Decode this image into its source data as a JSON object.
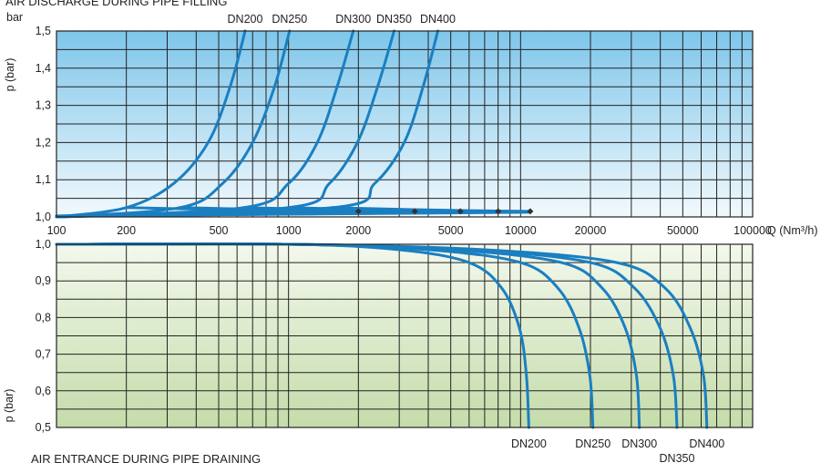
{
  "titles": {
    "top": "AIR DISCHARGE DURING PIPE FILLING",
    "bottom": "AIR ENTRANCE DURING PIPE DRAINING"
  },
  "chart_data": [
    {
      "type": "line",
      "title": "AIR DISCHARGE DURING PIPE FILLING",
      "xlabel": "Q (Nm³/h)",
      "ylabel": "p (bar)",
      "unit_label": "bar",
      "xscale": "log",
      "xlim": [
        100,
        100000
      ],
      "ylim": [
        1.0,
        1.5
      ],
      "x_tick_labels": [
        "100",
        "200",
        "500",
        "1000",
        "2000",
        "5000",
        "10000",
        "20000",
        "50000",
        "100000"
      ],
      "x_ticks": [
        100,
        200,
        500,
        1000,
        2000,
        5000,
        10000,
        20000,
        50000,
        100000
      ],
      "y_tick_labels": [
        "1,0",
        "1,1",
        "1,2",
        "1,3",
        "1,4",
        "1,5"
      ],
      "y_ticks": [
        1.0,
        1.1,
        1.2,
        1.3,
        1.4,
        1.5
      ],
      "grid": true,
      "colors": {
        "curve": "#1a7fc1",
        "bg_top": "#7ec6ea",
        "bg_bottom": "#f2f9fd",
        "marker": "#333333"
      },
      "series": [
        {
          "name": "DN200",
          "x": [
            100,
            200,
            320,
            450,
            560,
            650
          ],
          "y": [
            1.0,
            1.025,
            1.09,
            1.2,
            1.35,
            1.5
          ],
          "marker": [
            2000,
            1.015
          ]
        },
        {
          "name": "DN250",
          "x": [
            100,
            340,
            520,
            700,
            870,
            1010
          ],
          "y": [
            1.0,
            1.025,
            1.09,
            1.2,
            1.35,
            1.5
          ],
          "marker": [
            3500,
            1.015
          ]
        },
        {
          "name": "DN300",
          "x": [
            100,
            640,
            1000,
            1330,
            1620,
            1900
          ],
          "y": [
            1.0,
            1.025,
            1.09,
            1.2,
            1.35,
            1.5
          ],
          "marker": [
            5500,
            1.015
          ]
        },
        {
          "name": "DN350",
          "x": [
            100,
            1000,
            1500,
            1980,
            2420,
            2850
          ],
          "y": [
            1.0,
            1.025,
            1.09,
            1.2,
            1.35,
            1.5
          ],
          "marker": [
            8000,
            1.015
          ]
        },
        {
          "name": "DN400",
          "x": [
            100,
            1550,
            2350,
            3150,
            3800,
            4400
          ],
          "y": [
            1.0,
            1.025,
            1.09,
            1.2,
            1.35,
            1.5
          ],
          "marker": [
            11000,
            1.015
          ]
        }
      ]
    },
    {
      "type": "line",
      "title": "AIR ENTRANCE DURING PIPE DRAINING",
      "xlabel": "Q (Nm³/h)",
      "ylabel": "p (bar)",
      "xscale": "log",
      "xlim": [
        100,
        100000
      ],
      "ylim": [
        0.5,
        1.0
      ],
      "y_tick_labels": [
        "1,0",
        "0,9",
        "0,8",
        "0,7",
        "0,6",
        "0,5"
      ],
      "y_ticks": [
        1.0,
        0.9,
        0.8,
        0.7,
        0.6,
        0.5
      ],
      "grid": true,
      "colors": {
        "curve": "#1a7fc1",
        "bg_top": "#f3f8ec",
        "bg_bottom": "#c4dcaa"
      },
      "series": [
        {
          "name": "DN200",
          "x": [
            100,
            1000,
            3000,
            6000,
            8300,
            9900,
            10600,
            10850
          ],
          "y": [
            1.0,
            1.0,
            0.985,
            0.95,
            0.88,
            0.77,
            0.64,
            0.5
          ]
        },
        {
          "name": "DN250",
          "x": [
            100,
            1000,
            4000,
            10000,
            14500,
            17900,
            19900,
            20500
          ],
          "y": [
            1.0,
            1.0,
            0.985,
            0.95,
            0.88,
            0.77,
            0.64,
            0.5
          ]
        },
        {
          "name": "DN300",
          "x": [
            100,
            1000,
            5000,
            15000,
            22500,
            28300,
            31600,
            32500
          ],
          "y": [
            1.0,
            1.0,
            0.985,
            0.95,
            0.88,
            0.77,
            0.64,
            0.5
          ]
        },
        {
          "name": "DN350",
          "x": [
            100,
            1000,
            6000,
            20000,
            31000,
            40000,
            45600,
            47200
          ],
          "y": [
            1.0,
            1.0,
            0.985,
            0.95,
            0.88,
            0.77,
            0.64,
            0.5
          ]
        },
        {
          "name": "DN400",
          "x": [
            100,
            1000,
            7000,
            26000,
            42000,
            54000,
            61500,
            63500
          ],
          "y": [
            1.0,
            1.0,
            0.985,
            0.95,
            0.88,
            0.77,
            0.64,
            0.5
          ]
        }
      ]
    }
  ]
}
